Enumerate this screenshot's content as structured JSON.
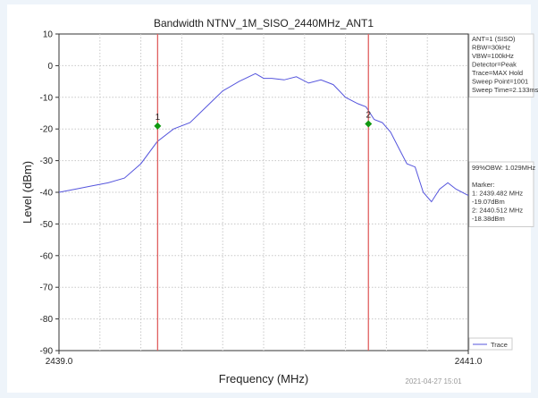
{
  "chart_data": {
    "type": "line",
    "title": "Bandwidth NTNV_1M_SISO_2440MHz_ANT1",
    "xlabel": "Frequency (MHz)",
    "ylabel": "Level (dBm)",
    "xlim": [
      2439.0,
      2441.0
    ],
    "ylim": [
      -90,
      10
    ],
    "x_tick_labels": [
      "2439.0",
      "2441.0"
    ],
    "y_ticks": [
      10,
      0,
      -10,
      -20,
      -30,
      -40,
      -50,
      -60,
      -70,
      -80,
      -90
    ],
    "grid": true,
    "grid_style": "dotted",
    "series": [
      {
        "name": "Trace",
        "color": "#5555dd",
        "x": [
          2439.0,
          2439.08,
          2439.16,
          2439.24,
          2439.32,
          2439.4,
          2439.48,
          2439.56,
          2439.64,
          2439.72,
          2439.8,
          2439.88,
          2439.96,
          2440.0,
          2440.04,
          2440.1,
          2440.16,
          2440.22,
          2440.28,
          2440.34,
          2440.4,
          2440.46,
          2440.5,
          2440.54,
          2440.58,
          2440.62,
          2440.66,
          2440.7,
          2440.74,
          2440.78,
          2440.82,
          2440.86,
          2440.9,
          2440.94,
          2441.0
        ],
        "y": [
          -40,
          -39,
          -38,
          -37,
          -35.5,
          -31,
          -24,
          -20,
          -18,
          -13,
          -8,
          -5,
          -2.5,
          -4,
          -4,
          -4.5,
          -3.5,
          -5.5,
          -4.5,
          -6,
          -10,
          -12,
          -13,
          -17,
          -18,
          -21,
          -26,
          -31,
          -32,
          -40,
          -43,
          -39,
          -37,
          -39,
          -41
        ]
      }
    ],
    "markers": [
      {
        "label": "1",
        "x": 2439.482,
        "y": -19.07,
        "color": "#119911"
      },
      {
        "label": "2",
        "x": 2440.512,
        "y": -18.38,
        "color": "#119911"
      }
    ],
    "obw_lines": [
      2439.482,
      2440.512
    ],
    "obw_line_color": "#e06060",
    "info_box_lines": [
      "ANT=1 (SISO)",
      "RBW=30kHz",
      "VBW=100kHz",
      "Detector=Peak",
      "Trace=MAX Hold",
      "Sweep Point=1001",
      "Sweep Time=2.133ms"
    ],
    "result_box_lines": [
      "99%OBW: 1.029MHz",
      "",
      "Marker:",
      "1: 2439.482 MHz",
      "   -19.07dBm",
      "2: 2440.512 MHz",
      "   -18.38dBm"
    ],
    "legend_position": "right-bottom",
    "timestamp": "2021-04-27 15:01"
  }
}
